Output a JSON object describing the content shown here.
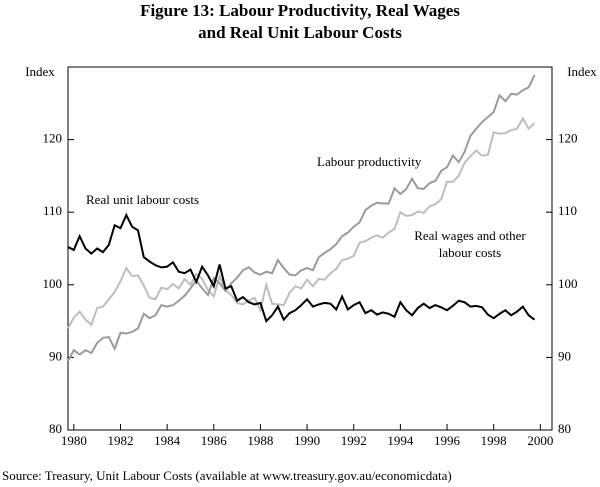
{
  "chart_data": {
    "type": "line",
    "title_lines": [
      "Figure 13: Labour Productivity, Real Wages",
      "and Real Unit Labour Costs"
    ],
    "y_axis_label": "Index",
    "y2_axis_label": "Index",
    "source": "Source: Treasury, Unit Labour Costs (available at www.treasury.gov.au/economicdata)",
    "x": [
      1979.75,
      1980,
      1980.25,
      1980.5,
      1980.75,
      1981,
      1981.25,
      1981.5,
      1981.75,
      1982,
      1982.25,
      1982.5,
      1982.75,
      1983,
      1983.25,
      1983.5,
      1983.75,
      1984,
      1984.25,
      1984.5,
      1984.75,
      1985,
      1985.25,
      1985.5,
      1985.75,
      1986,
      1986.25,
      1986.5,
      1986.75,
      1987,
      1987.25,
      1987.5,
      1987.75,
      1988,
      1988.25,
      1988.5,
      1988.75,
      1989,
      1989.25,
      1989.5,
      1989.75,
      1990,
      1990.25,
      1990.5,
      1990.75,
      1991,
      1991.25,
      1991.5,
      1991.75,
      1992,
      1992.25,
      1992.5,
      1992.75,
      1993,
      1993.25,
      1993.5,
      1993.75,
      1994,
      1994.25,
      1994.5,
      1994.75,
      1995,
      1995.25,
      1995.5,
      1995.75,
      1996,
      1996.25,
      1996.5,
      1996.75,
      1997,
      1997.25,
      1997.5,
      1997.75,
      1998,
      1998.25,
      1998.5,
      1998.75,
      1999,
      1999.25,
      1999.5,
      1999.75
    ],
    "series": [
      {
        "name": "Real wages and other labour costs",
        "color": "#bdbdbd",
        "values": [
          94,
          95.5,
          96.3,
          95.2,
          94.5,
          96.8,
          97,
          98,
          99,
          100.5,
          102.3,
          101.2,
          101.3,
          99.9,
          98.2,
          98,
          99.6,
          99.4,
          100.1,
          99.5,
          100.8,
          100,
          101.5,
          100.8,
          99.3,
          98.4,
          101.2,
          99.2,
          98.6,
          97.5,
          97.3,
          97.8,
          98.2,
          96.5,
          100,
          97.4,
          97.3,
          97.2,
          98.9,
          99.8,
          99.5,
          100.7,
          99.8,
          100.8,
          100.7,
          101.6,
          102.2,
          103.4,
          103.6,
          104,
          105.8,
          106,
          106.5,
          106.8,
          106.5,
          107.2,
          107.7,
          110,
          109.5,
          109.6,
          110.1,
          109.9,
          110.8,
          111.1,
          111.8,
          114.2,
          114.2,
          115,
          116.8,
          117.7,
          118.5,
          117.8,
          117.9,
          121,
          120.8,
          120.9,
          121.3,
          121.5,
          122.9,
          121.5,
          122.3
        ]
      },
      {
        "name": "Labour productivity",
        "color": "#9a9a9a",
        "values": [
          89.5,
          91,
          90.4,
          91,
          90.6,
          92,
          92.7,
          92.8,
          91.2,
          93.4,
          93.3,
          93.5,
          94,
          96,
          95.4,
          95.8,
          97.2,
          97,
          97.2,
          97.8,
          98.5,
          99.5,
          100.6,
          99.5,
          98.6,
          100.9,
          100.2,
          99.2,
          100.2,
          101,
          102,
          102.4,
          101.7,
          101.4,
          101.8,
          101.6,
          103.4,
          102.3,
          101.4,
          101.3,
          102,
          102.3,
          102,
          103.8,
          104.4,
          104.9,
          105.6,
          106.7,
          107.2,
          108,
          108.6,
          110.3,
          110.9,
          111.3,
          111.2,
          111.2,
          113.3,
          112.5,
          113.2,
          114.6,
          113.3,
          113.2,
          114,
          114.3,
          115.7,
          116.2,
          117.8,
          116.9,
          118.3,
          120.5,
          121.5,
          122.4,
          123.1,
          123.8,
          126.1,
          125.3,
          126.3,
          126.2,
          126.8,
          127.2,
          128.9
        ]
      },
      {
        "name": "Real unit labour costs",
        "color": "#000000",
        "values": [
          105.2,
          104.8,
          106.7,
          105,
          104.3,
          105,
          104.5,
          105.5,
          108.2,
          107.8,
          109.6,
          108,
          107.5,
          103.8,
          103.2,
          102.7,
          102.4,
          102.5,
          103.1,
          101.8,
          101.6,
          102.1,
          100.4,
          102.5,
          101.3,
          99.8,
          102.8,
          99.5,
          99.8,
          97.8,
          98.3,
          97.6,
          97.3,
          97.5,
          95,
          95.8,
          97,
          95.2,
          96.1,
          96.5,
          97.2,
          98,
          97,
          97.3,
          97.5,
          97.4,
          96.6,
          98.4,
          96.6,
          97.2,
          97.6,
          96.1,
          96.5,
          95.9,
          96.2,
          96,
          95.6,
          97.6,
          96.5,
          95.8,
          96.8,
          97.4,
          96.8,
          97.2,
          96.9,
          96.5,
          97.1,
          97.8,
          97.6,
          97,
          97.1,
          96.9,
          95.9,
          95.4,
          96,
          96.5,
          95.8,
          96.3,
          97,
          95.8,
          95.2
        ]
      }
    ],
    "annotations": [
      "Labour productivity",
      "Real unit labour costs",
      "Real wages and other",
      "labour costs"
    ],
    "xlim": [
      1979.75,
      2000.5
    ],
    "xticks": [
      1980,
      1982,
      1984,
      1986,
      1988,
      1990,
      1992,
      1994,
      1996,
      1998,
      2000
    ],
    "ylim": [
      80,
      130
    ],
    "yticks": [
      80,
      90,
      100,
      110,
      120
    ],
    "y2lim": [
      80,
      130
    ],
    "y2ticks": [
      80,
      90,
      100,
      110,
      120
    ]
  }
}
